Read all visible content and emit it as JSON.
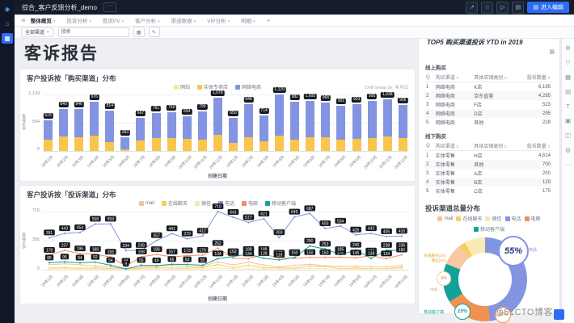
{
  "app": {
    "sidebar": {
      "icons": [
        {
          "name": "logo-icon",
          "glyph": "◈"
        },
        {
          "name": "home-icon",
          "glyph": "⌂"
        },
        {
          "name": "directory-icon",
          "glyph": "▦",
          "active": true
        }
      ]
    },
    "topbar": {
      "title": "综合_客户反馈分析_demo",
      "more_label": "···",
      "actions": [
        {
          "name": "share-icon",
          "glyph": "↗"
        },
        {
          "name": "favorite-icon",
          "glyph": "☆"
        },
        {
          "name": "play-icon",
          "glyph": "▷"
        },
        {
          "name": "export-icon",
          "glyph": "▤"
        }
      ],
      "edit_button": {
        "glyph": "▤",
        "label": "进入编辑"
      }
    },
    "tabbar": {
      "menu_glyph": "≣",
      "tabs": [
        "整体概览",
        "投诉分析",
        "投诉PV",
        "客户分析",
        "渠道数据",
        "VIP分析",
        "明细"
      ],
      "active_index": 0,
      "caret": "▾",
      "add_label": "+"
    },
    "filterbar": {
      "channel_value": "全部渠道",
      "caret": "▾",
      "search_placeholder": "搜索",
      "icons": [
        {
          "name": "grid-view-icon",
          "glyph": "▦"
        },
        {
          "name": "edit-pencil-icon",
          "glyph": "✎"
        }
      ]
    },
    "right_toolbar": {
      "icons": [
        {
          "name": "gear-icon",
          "glyph": "⚙"
        },
        {
          "name": "filter-icon",
          "glyph": "▽"
        },
        {
          "name": "chart-icon",
          "glyph": "▦"
        },
        {
          "name": "table-icon",
          "glyph": "▤"
        },
        {
          "name": "text-icon",
          "glyph": "T"
        },
        {
          "name": "image-icon",
          "glyph": "▣"
        },
        {
          "name": "tab-icon",
          "glyph": "◫"
        },
        {
          "name": "web-icon",
          "glyph": "◍"
        },
        {
          "name": "more-icon",
          "glyph": "⋯"
        }
      ]
    },
    "watermark": "@51CTO博客"
  },
  "page": {
    "title": "客诉报告"
  },
  "top5": {
    "title": "TOP5 购买渠道投诉 YTD in 2019",
    "corner_icon": "▦",
    "sort_glyph": "⇅",
    "sections": [
      {
        "label": "线上购买",
        "headers": [
          "Q",
          "购买渠道",
          "具体店铺类别",
          "投诉数量"
        ],
        "rows": [
          [
            "1",
            "网络电商",
            "K店",
            "6,195"
          ],
          [
            "2",
            "网络电商",
            "京东直营",
            "4,285"
          ],
          [
            "3",
            "网络电商",
            "F店",
            "523"
          ],
          [
            "4",
            "网络电商",
            "D店",
            "295"
          ],
          [
            "5",
            "网络电商",
            "其他",
            "228"
          ]
        ]
      },
      {
        "label": "线下购买",
        "headers": [
          "Q",
          "购买渠道",
          "具体店铺类别",
          "投诉数量"
        ],
        "rows": [
          [
            "1",
            "实体零售",
            "H店",
            "4,614"
          ],
          [
            "2",
            "实体零售",
            "其他",
            "700"
          ],
          [
            "3",
            "实体零售",
            "A店",
            "200"
          ],
          [
            "4",
            "实体零售",
            "B店",
            "129"
          ],
          [
            "5",
            "实体零售",
            "C店",
            "175"
          ]
        ]
      }
    ]
  },
  "chart_data": [
    {
      "id": "purchase_bar",
      "type": "bar",
      "stacked": true,
      "title": "客户投诉按「购买渠道」分布",
      "drill_text": "Drill Group by: 年月日",
      "xlabel": "创建日期",
      "ylabel": "投诉数量",
      "ylim": [
        0,
        1129
      ],
      "yticks": [
        "1,129",
        "564",
        "0"
      ],
      "legend": [
        {
          "label": "网站",
          "color": "#f7e6a0"
        },
        {
          "label": "实体专卖店",
          "color": "#f8c64b"
        },
        {
          "label": "网络电商",
          "color": "#8394e2"
        }
      ],
      "categories": [
        "18年1月",
        "18年2月",
        "18年3月",
        "18年4月",
        "18年5月",
        "18年6月",
        "18年7月",
        "18年8月",
        "18年9月",
        "18年10月",
        "18年11月",
        "18年12月",
        "19年1月",
        "19年2月",
        "19年3月",
        "19年4月",
        "19年5月",
        "19年6月",
        "19年7月",
        "19年8月",
        "19年9月",
        "19年10月",
        "19年11月",
        "19年12月"
      ],
      "series": [
        {
          "name": "实体专卖店",
          "color": "#f8c64b",
          "values": [
            230,
            295,
            280,
            300,
            185,
            40,
            215,
            260,
            250,
            240,
            230,
            330,
            155,
            280,
            190,
            300,
            225,
            280,
            270,
            230,
            240,
            260,
            290,
            250
          ]
        },
        {
          "name": "网络电商",
          "color": "#8394e2",
          "values": [
            393,
            545,
            566,
            676,
            629,
            243,
            452,
            501,
            519,
            454,
            569,
            748,
            495,
            668,
            524,
            829,
            757,
            725,
            698,
            671,
            693,
            735,
            748,
            655
          ]
        }
      ]
    },
    {
      "id": "channel_line",
      "type": "line",
      "title": "客户投诉按「投诉渠道」分布",
      "xlabel": "创建日期",
      "ylabel": "投诉数量",
      "ylim": [
        0,
        710
      ],
      "yticks": [
        "710",
        "355",
        "0"
      ],
      "categories": [
        "18年1月",
        "18年2月",
        "18年3月",
        "18年4月",
        "18年5月",
        "18年6月",
        "18年7月",
        "18年8月",
        "18年9月",
        "18年10月",
        "18年11月",
        "18年12月",
        "19年1月",
        "19年2月",
        "19年3月",
        "19年4月",
        "19年5月",
        "19年6月",
        "19年7月",
        "19年8月",
        "19年9月",
        "19年10月",
        "19年11月",
        "19年12月"
      ],
      "series": [
        {
          "name": "mail",
          "color": "#f7c29a",
          "labels": false,
          "values": [
            60,
            72,
            61,
            47,
            34,
            8,
            33,
            45,
            52,
            38,
            42,
            96,
            57,
            94,
            56,
            33,
            53,
            66,
            47,
            41,
            44,
            33,
            37,
            52
          ]
        },
        {
          "name": "在线聊天",
          "color": "#f5cf5a",
          "labels": false,
          "values": [
            20,
            25,
            18,
            22,
            15,
            5,
            20,
            23,
            21,
            19,
            25,
            64,
            23,
            56,
            24,
            23,
            19,
            44,
            42,
            13,
            22,
            11,
            15,
            30
          ]
        },
        {
          "name": "微信",
          "color": "#f8e8ae",
          "labels": false,
          "values": [
            8,
            10,
            9,
            7,
            6,
            2,
            8,
            9,
            7,
            8,
            9,
            20,
            10,
            12,
            9,
            8,
            7,
            15,
            12,
            9,
            10,
            8,
            9,
            12
          ]
        },
        {
          "name": "电话",
          "color": "#8394e2",
          "labels": true,
          "values": [
            391,
            443,
            454,
            558,
            559,
            234,
            238,
            357,
            441,
            379,
            412,
            710,
            641,
            577,
            621,
            393,
            645,
            687,
            503,
            534,
            426,
            442,
            405,
            410
          ]
        },
        {
          "name": "电邮",
          "color": "#ef8f62",
          "labels": true,
          "values": [
            178,
            237,
            196,
            188,
            155,
            44,
            158,
            186,
            157,
            173,
            179,
            262,
            141,
            134,
            188,
            143,
            139,
            150,
            150,
            152,
            145,
            170,
            134,
            182
          ]
        },
        {
          "name": "移动客户端",
          "color": "#12a29a",
          "labels": true,
          "values": [
            85,
            96,
            84,
            92,
            54,
            9,
            56,
            49,
            66,
            63,
            55,
            134,
            162,
            188,
            139,
            119,
            150,
            290,
            253,
            185,
            240,
            138,
            238,
            236
          ]
        }
      ]
    },
    {
      "id": "channel_donut",
      "type": "pie",
      "title": "投诉渠道总量分布",
      "start_angle_deg": -25,
      "slices": [
        {
          "label": "电话",
          "pct": 55,
          "color": "#8394e2"
        },
        {
          "label": "电邮",
          "pct": 18,
          "color": "#f0924f"
        },
        {
          "label": "移动客户端",
          "pct": 15,
          "color": "#12a29a"
        },
        {
          "label": "mail",
          "pct": 9,
          "color": "#f8c8a0"
        },
        {
          "label": "在线聊天",
          "pct": 2,
          "color": "#f5d05a"
        },
        {
          "label": "微信",
          "pct": 1,
          "color": "#faeab5"
        }
      ],
      "legend": [
        {
          "label": "mail",
          "color": "#f7c29a"
        },
        {
          "label": "在线聊天",
          "color": "#f5cf5a"
        },
        {
          "label": "微信",
          "color": "#f8e8ae"
        },
        {
          "label": "电话",
          "color": "#8394e2"
        },
        {
          "label": "电邮",
          "color": "#ef8f62"
        },
        {
          "label": "移动客户端",
          "color": "#12a29a"
        }
      ],
      "callouts": {
        "big_label": "55%",
        "small_labels": [
          "18%",
          "15%",
          "9%"
        ],
        "tiny_labels": [
          "在线聊天(2%)",
          "微信(1%)"
        ]
      }
    }
  ]
}
